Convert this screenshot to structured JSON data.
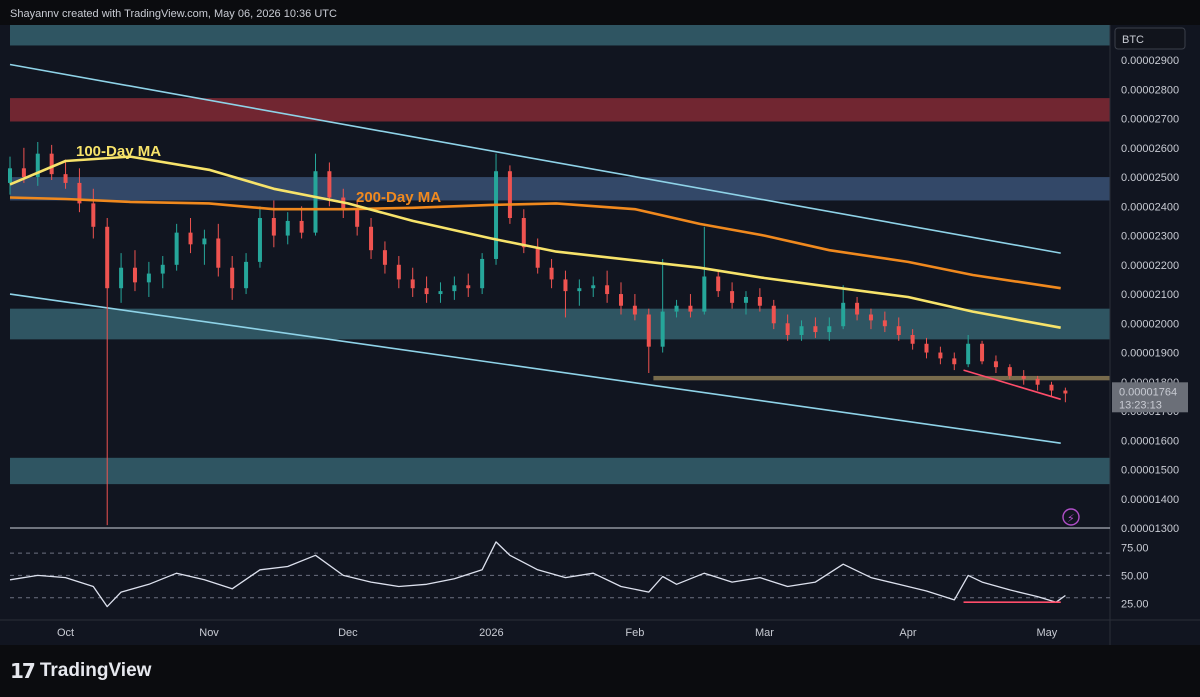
{
  "header": {
    "attribution": "Shayannv created with TradingView.com, May 06, 2026 10:36 UTC"
  },
  "footer": {
    "brand": "TradingView",
    "logo_icon": "tradingview-logo-icon"
  },
  "colors": {
    "background": "#111520",
    "bullish": "#26a69a",
    "bearish": "#ef5350",
    "ma100": "#f7e36a",
    "ma200": "#f0891e",
    "channel": "#8fd3e8",
    "zone_teal": "#3a6b78",
    "zone_red": "#8a2b36",
    "zone_blue": "#3f5a80",
    "support_brown": "#8b7a55",
    "rsi": "#dde1ee",
    "divergence": "#ff4d6a"
  },
  "chart_data": {
    "type": "candlestick",
    "symbol_badge": "BTC",
    "y_axis": {
      "ticks": [
        "0.00002900",
        "0.00002800",
        "0.00002700",
        "0.00002600",
        "0.00002500",
        "0.00002400",
        "0.00002300",
        "0.00002200",
        "0.00002100",
        "0.00002000",
        "0.00001900",
        "0.00001800",
        "0.00001700",
        "0.00001600",
        "0.00001500",
        "0.00001400",
        "0.00001300"
      ],
      "range": [
        1.3e-05,
        3.02e-05
      ]
    },
    "x_axis": {
      "ticks": [
        "Oct",
        "Nov",
        "Dec",
        "2026",
        "Feb",
        "Mar",
        "Apr",
        "May"
      ],
      "tick_dates": [
        "2025-10-01",
        "2025-11-01",
        "2025-12-01",
        "2026-01-01",
        "2026-02-01",
        "2026-03-01",
        "2026-04-01",
        "2026-05-01"
      ],
      "range": [
        "2025-09-19",
        "2026-05-06"
      ]
    },
    "last_price": {
      "value": "0.00001764",
      "countdown": "13:23:13"
    },
    "annotations": [
      {
        "text": "100-Day MA",
        "color": "#f7e36a"
      },
      {
        "text": "200-Day MA",
        "color": "#f0891e"
      }
    ],
    "zones": [
      {
        "low": 2.95e-05,
        "high": 3.04e-05,
        "kind": "teal"
      },
      {
        "low": 2.69e-05,
        "high": 2.77e-05,
        "kind": "red"
      },
      {
        "low": 2.42e-05,
        "high": 2.5e-05,
        "kind": "blue"
      },
      {
        "low": 1.945e-05,
        "high": 2.05e-05,
        "kind": "teal"
      },
      {
        "low": 1.805e-05,
        "high": 1.82e-05,
        "kind": "brown",
        "start": "2026-02-05"
      },
      {
        "low": 1.45e-05,
        "high": 1.54e-05,
        "kind": "teal"
      }
    ],
    "channel_lines": [
      {
        "start": [
          "2025-09-19",
          2.885e-05
        ],
        "end": [
          "2026-05-04",
          2.24e-05
        ]
      },
      {
        "start": [
          "2025-09-19",
          2.1e-05
        ],
        "end": [
          "2026-05-04",
          1.59e-05
        ]
      }
    ],
    "divergence_price": {
      "start": [
        "2026-04-13",
        1.84e-05
      ],
      "end": [
        "2026-05-04",
        1.74e-05
      ]
    },
    "ma100": {
      "dates": [
        "2025-09-19",
        "2025-10-01",
        "2025-10-15",
        "2025-11-01",
        "2025-11-15",
        "2025-12-01",
        "2025-12-15",
        "2026-01-01",
        "2026-01-15",
        "2026-02-01",
        "2026-02-15",
        "2026-03-01",
        "2026-03-15",
        "2026-04-01",
        "2026-04-15",
        "2026-05-04"
      ],
      "values": [
        2.475e-05,
        2.555e-05,
        2.57e-05,
        2.525e-05,
        2.46e-05,
        2.41e-05,
        2.35e-05,
        2.29e-05,
        2.245e-05,
        2.215e-05,
        2.19e-05,
        2.155e-05,
        2.125e-05,
        2.09e-05,
        2.04e-05,
        1.985e-05
      ]
    },
    "ma200": {
      "dates": [
        "2025-09-19",
        "2025-10-01",
        "2025-10-15",
        "2025-11-01",
        "2025-11-15",
        "2025-12-01",
        "2025-12-15",
        "2026-01-01",
        "2026-01-15",
        "2026-02-01",
        "2026-02-15",
        "2026-03-01",
        "2026-03-15",
        "2026-04-01",
        "2026-04-15",
        "2026-05-04"
      ],
      "values": [
        2.43e-05,
        2.425e-05,
        2.415e-05,
        2.41e-05,
        2.39e-05,
        2.39e-05,
        2.395e-05,
        2.405e-05,
        2.41e-05,
        2.39e-05,
        2.34e-05,
        2.3e-05,
        2.25e-05,
        2.21e-05,
        2.165e-05,
        2.12e-05
      ]
    },
    "candles": {
      "fields": [
        "date",
        "open",
        "high",
        "low",
        "close"
      ],
      "data": [
        [
          "2025-09-19",
          2.48e-05,
          2.57e-05,
          2.44e-05,
          2.53e-05
        ],
        [
          "2025-09-22",
          2.53e-05,
          2.6e-05,
          2.48e-05,
          2.5e-05
        ],
        [
          "2025-09-25",
          2.5e-05,
          2.62e-05,
          2.47e-05,
          2.58e-05
        ],
        [
          "2025-09-28",
          2.58e-05,
          2.61e-05,
          2.49e-05,
          2.51e-05
        ],
        [
          "2025-10-01",
          2.51e-05,
          2.56e-05,
          2.46e-05,
          2.48e-05
        ],
        [
          "2025-10-04",
          2.48e-05,
          2.53e-05,
          2.38e-05,
          2.41e-05
        ],
        [
          "2025-10-07",
          2.41e-05,
          2.46e-05,
          2.29e-05,
          2.33e-05
        ],
        [
          "2025-10-10",
          2.33e-05,
          2.36e-05,
          1.31e-05,
          2.12e-05
        ],
        [
          "2025-10-13",
          2.12e-05,
          2.24e-05,
          2.07e-05,
          2.19e-05
        ],
        [
          "2025-10-16",
          2.19e-05,
          2.25e-05,
          2.11e-05,
          2.14e-05
        ],
        [
          "2025-10-19",
          2.14e-05,
          2.21e-05,
          2.09e-05,
          2.17e-05
        ],
        [
          "2025-10-22",
          2.17e-05,
          2.23e-05,
          2.12e-05,
          2.2e-05
        ],
        [
          "2025-10-25",
          2.2e-05,
          2.34e-05,
          2.18e-05,
          2.31e-05
        ],
        [
          "2025-10-28",
          2.31e-05,
          2.36e-05,
          2.24e-05,
          2.27e-05
        ],
        [
          "2025-10-31",
          2.27e-05,
          2.32e-05,
          2.2e-05,
          2.29e-05
        ],
        [
          "2025-11-03",
          2.29e-05,
          2.34e-05,
          2.16e-05,
          2.19e-05
        ],
        [
          "2025-11-06",
          2.19e-05,
          2.23e-05,
          2.08e-05,
          2.12e-05
        ],
        [
          "2025-11-09",
          2.12e-05,
          2.24e-05,
          2.1e-05,
          2.21e-05
        ],
        [
          "2025-11-12",
          2.21e-05,
          2.4e-05,
          2.19e-05,
          2.36e-05
        ],
        [
          "2025-11-15",
          2.36e-05,
          2.42e-05,
          2.26e-05,
          2.3e-05
        ],
        [
          "2025-11-18",
          2.3e-05,
          2.38e-05,
          2.27e-05,
          2.35e-05
        ],
        [
          "2025-11-21",
          2.35e-05,
          2.4e-05,
          2.29e-05,
          2.31e-05
        ],
        [
          "2025-11-24",
          2.31e-05,
          2.58e-05,
          2.3e-05,
          2.52e-05
        ],
        [
          "2025-11-27",
          2.52e-05,
          2.55e-05,
          2.4e-05,
          2.43e-05
        ],
        [
          "2025-11-30",
          2.43e-05,
          2.46e-05,
          2.36e-05,
          2.39e-05
        ],
        [
          "2025-12-03",
          2.39e-05,
          2.42e-05,
          2.3e-05,
          2.33e-05
        ],
        [
          "2025-12-06",
          2.33e-05,
          2.36e-05,
          2.22e-05,
          2.25e-05
        ],
        [
          "2025-12-09",
          2.25e-05,
          2.28e-05,
          2.17e-05,
          2.2e-05
        ],
        [
          "2025-12-12",
          2.2e-05,
          2.23e-05,
          2.12e-05,
          2.15e-05
        ],
        [
          "2025-12-15",
          2.15e-05,
          2.19e-05,
          2.09e-05,
          2.12e-05
        ],
        [
          "2025-12-18",
          2.12e-05,
          2.16e-05,
          2.07e-05,
          2.1e-05
        ],
        [
          "2025-12-21",
          2.1e-05,
          2.14e-05,
          2.07e-05,
          2.11e-05
        ],
        [
          "2025-12-24",
          2.11e-05,
          2.16e-05,
          2.08e-05,
          2.13e-05
        ],
        [
          "2025-12-27",
          2.13e-05,
          2.17e-05,
          2.09e-05,
          2.12e-05
        ],
        [
          "2025-12-30",
          2.12e-05,
          2.24e-05,
          2.1e-05,
          2.22e-05
        ],
        [
          "2026-01-02",
          2.22e-05,
          2.58e-05,
          2.2e-05,
          2.52e-05
        ],
        [
          "2026-01-05",
          2.52e-05,
          2.54e-05,
          2.34e-05,
          2.36e-05
        ],
        [
          "2026-01-08",
          2.36e-05,
          2.39e-05,
          2.24e-05,
          2.26e-05
        ],
        [
          "2026-01-11",
          2.26e-05,
          2.29e-05,
          2.17e-05,
          2.19e-05
        ],
        [
          "2026-01-14",
          2.19e-05,
          2.22e-05,
          2.12e-05,
          2.15e-05
        ],
        [
          "2026-01-17",
          2.15e-05,
          2.18e-05,
          2.02e-05,
          2.11e-05
        ],
        [
          "2026-01-20",
          2.11e-05,
          2.15e-05,
          2.06e-05,
          2.12e-05
        ],
        [
          "2026-01-23",
          2.12e-05,
          2.16e-05,
          2.09e-05,
          2.13e-05
        ],
        [
          "2026-01-26",
          2.13e-05,
          2.18e-05,
          2.07e-05,
          2.1e-05
        ],
        [
          "2026-01-29",
          2.1e-05,
          2.14e-05,
          2.03e-05,
          2.06e-05
        ],
        [
          "2026-02-01",
          2.06e-05,
          2.1e-05,
          2.01e-05,
          2.03e-05
        ],
        [
          "2026-02-04",
          2.03e-05,
          2.05e-05,
          1.83e-05,
          1.92e-05
        ],
        [
          "2026-02-07",
          1.92e-05,
          2.22e-05,
          1.9e-05,
          2.04e-05
        ],
        [
          "2026-02-10",
          2.04e-05,
          2.08e-05,
          2.02e-05,
          2.06e-05
        ],
        [
          "2026-02-13",
          2.06e-05,
          2.1e-05,
          2.02e-05,
          2.04e-05
        ],
        [
          "2026-02-16",
          2.04e-05,
          2.33e-05,
          2.03e-05,
          2.16e-05
        ],
        [
          "2026-02-19",
          2.16e-05,
          2.18e-05,
          2.09e-05,
          2.11e-05
        ],
        [
          "2026-02-22",
          2.11e-05,
          2.14e-05,
          2.05e-05,
          2.07e-05
        ],
        [
          "2026-02-25",
          2.07e-05,
          2.11e-05,
          2.03e-05,
          2.09e-05
        ],
        [
          "2026-02-28",
          2.09e-05,
          2.12e-05,
          2.04e-05,
          2.06e-05
        ],
        [
          "2026-03-03",
          2.06e-05,
          2.08e-05,
          1.98e-05,
          2e-05
        ],
        [
          "2026-03-06",
          2e-05,
          2.03e-05,
          1.94e-05,
          1.96e-05
        ],
        [
          "2026-03-09",
          1.96e-05,
          2.01e-05,
          1.94e-05,
          1.99e-05
        ],
        [
          "2026-03-12",
          1.99e-05,
          2.02e-05,
          1.95e-05,
          1.97e-05
        ],
        [
          "2026-03-15",
          1.97e-05,
          2.02e-05,
          1.94e-05,
          1.99e-05
        ],
        [
          "2026-03-18",
          1.99e-05,
          2.13e-05,
          1.98e-05,
          2.07e-05
        ],
        [
          "2026-03-21",
          2.07e-05,
          2.09e-05,
          2.01e-05,
          2.03e-05
        ],
        [
          "2026-03-24",
          2.03e-05,
          2.05e-05,
          1.98e-05,
          2.01e-05
        ],
        [
          "2026-03-27",
          2.01e-05,
          2.04e-05,
          1.97e-05,
          1.99e-05
        ],
        [
          "2026-03-30",
          1.99e-05,
          2.02e-05,
          1.94e-05,
          1.96e-05
        ],
        [
          "2026-04-02",
          1.96e-05,
          1.98e-05,
          1.91e-05,
          1.93e-05
        ],
        [
          "2026-04-05",
          1.93e-05,
          1.95e-05,
          1.88e-05,
          1.9e-05
        ],
        [
          "2026-04-08",
          1.9e-05,
          1.92e-05,
          1.86e-05,
          1.88e-05
        ],
        [
          "2026-04-11",
          1.88e-05,
          1.9e-05,
          1.84e-05,
          1.86e-05
        ],
        [
          "2026-04-14",
          1.86e-05,
          1.96e-05,
          1.85e-05,
          1.93e-05
        ],
        [
          "2026-04-17",
          1.93e-05,
          1.94e-05,
          1.86e-05,
          1.87e-05
        ],
        [
          "2026-04-20",
          1.87e-05,
          1.89e-05,
          1.83e-05,
          1.85e-05
        ],
        [
          "2026-04-23",
          1.85e-05,
          1.86e-05,
          1.81e-05,
          1.82e-05
        ],
        [
          "2026-04-26",
          1.82e-05,
          1.84e-05,
          1.79e-05,
          1.81e-05
        ],
        [
          "2026-04-29",
          1.81e-05,
          1.82e-05,
          1.77e-05,
          1.79e-05
        ],
        [
          "2026-05-02",
          1.79e-05,
          1.8e-05,
          1.75e-05,
          1.77e-05
        ],
        [
          "2026-05-05",
          1.77e-05,
          1.78e-05,
          1.73e-05,
          1.76e-05
        ]
      ]
    },
    "rsi": {
      "y_ticks": [
        "75.00",
        "50.00",
        "25.00"
      ],
      "guide_levels": [
        70,
        50,
        30
      ],
      "range": [
        10,
        88
      ],
      "dates": [
        "2025-09-19",
        "2025-09-25",
        "2025-10-01",
        "2025-10-07",
        "2025-10-10",
        "2025-10-13",
        "2025-10-19",
        "2025-10-25",
        "2025-10-31",
        "2025-11-06",
        "2025-11-12",
        "2025-11-18",
        "2025-11-24",
        "2025-11-30",
        "2025-12-06",
        "2025-12-12",
        "2025-12-18",
        "2025-12-24",
        "2025-12-30",
        "2026-01-02",
        "2026-01-05",
        "2026-01-11",
        "2026-01-17",
        "2026-01-23",
        "2026-01-29",
        "2026-02-04",
        "2026-02-07",
        "2026-02-10",
        "2026-02-16",
        "2026-02-22",
        "2026-02-28",
        "2026-03-06",
        "2026-03-12",
        "2026-03-18",
        "2026-03-24",
        "2026-03-30",
        "2026-04-05",
        "2026-04-11",
        "2026-04-14",
        "2026-04-17",
        "2026-04-23",
        "2026-04-29",
        "2026-05-03",
        "2026-05-05"
      ],
      "values": [
        46,
        50,
        48,
        40,
        22,
        35,
        42,
        52,
        46,
        38,
        55,
        58,
        68,
        50,
        44,
        40,
        42,
        47,
        55,
        80,
        68,
        55,
        48,
        52,
        40,
        35,
        49,
        42,
        52,
        44,
        48,
        40,
        44,
        60,
        48,
        42,
        36,
        28,
        50,
        44,
        37,
        31,
        26,
        32
      ]
    },
    "divergence_rsi": {
      "start": [
        "2026-04-13",
        26
      ],
      "end": [
        "2026-05-04",
        26
      ]
    }
  }
}
